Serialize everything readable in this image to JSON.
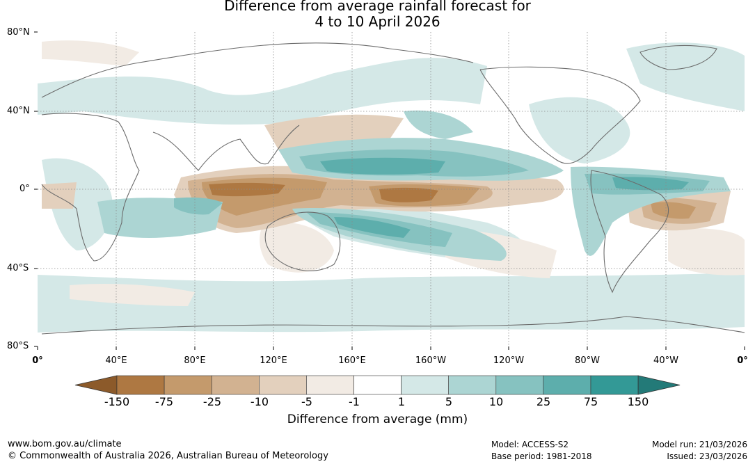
{
  "title_line1": "Difference from average rainfall forecast for",
  "title_line2": "4 to 10 April 2026",
  "latitude_labels": [
    "80°N",
    "40°N",
    "0°",
    "40°S",
    "80°S"
  ],
  "longitude_labels": [
    "0°",
    "40°E",
    "80°E",
    "120°E",
    "160°E",
    "160°W",
    "120°W",
    "80°W",
    "40°W",
    "0°"
  ],
  "legend": {
    "tick_labels": [
      "-150",
      "-75",
      "-25",
      "-10",
      "-5",
      "-1",
      "1",
      "5",
      "10",
      "25",
      "75",
      "150"
    ],
    "colors": [
      "#8c5a2a",
      "#ae7842",
      "#c49a6c",
      "#d2b291",
      "#e3d0bd",
      "#f2ebe4",
      "#ffffff",
      "#d4e8e7",
      "#acd5d3",
      "#86c2c0",
      "#5daeac",
      "#339996",
      "#237a78"
    ],
    "units_label": "Difference from average (mm)"
  },
  "footer": {
    "url": "www.bom.gov.au/climate",
    "copyright": "© Commonwealth of Australia 2026, Australian Bureau of Meteorology",
    "model": "Model: ACCESS-S2",
    "base_period": "Base period: 1981-2018",
    "model_run": "Model run: 21/03/2026",
    "issued": "Issued: 23/03/2026"
  }
}
